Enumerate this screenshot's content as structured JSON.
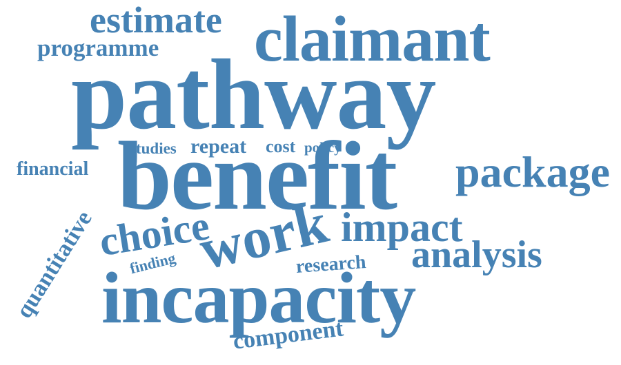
{
  "word_cloud": {
    "text_color": "#4682b4",
    "background_color": "#ffffff",
    "words": [
      {
        "text": "pathway"
      },
      {
        "text": "benefit"
      },
      {
        "text": "incapacity"
      },
      {
        "text": "claimant"
      },
      {
        "text": "work"
      },
      {
        "text": "package"
      },
      {
        "text": "choice"
      },
      {
        "text": "impact"
      },
      {
        "text": "analysis"
      },
      {
        "text": "estimate"
      },
      {
        "text": "programme"
      },
      {
        "text": "quantitative"
      },
      {
        "text": "component"
      },
      {
        "text": "financial"
      },
      {
        "text": "research"
      },
      {
        "text": "finding"
      },
      {
        "text": "repeat"
      },
      {
        "text": "cost"
      },
      {
        "text": "policy"
      },
      {
        "text": "studies"
      }
    ]
  }
}
